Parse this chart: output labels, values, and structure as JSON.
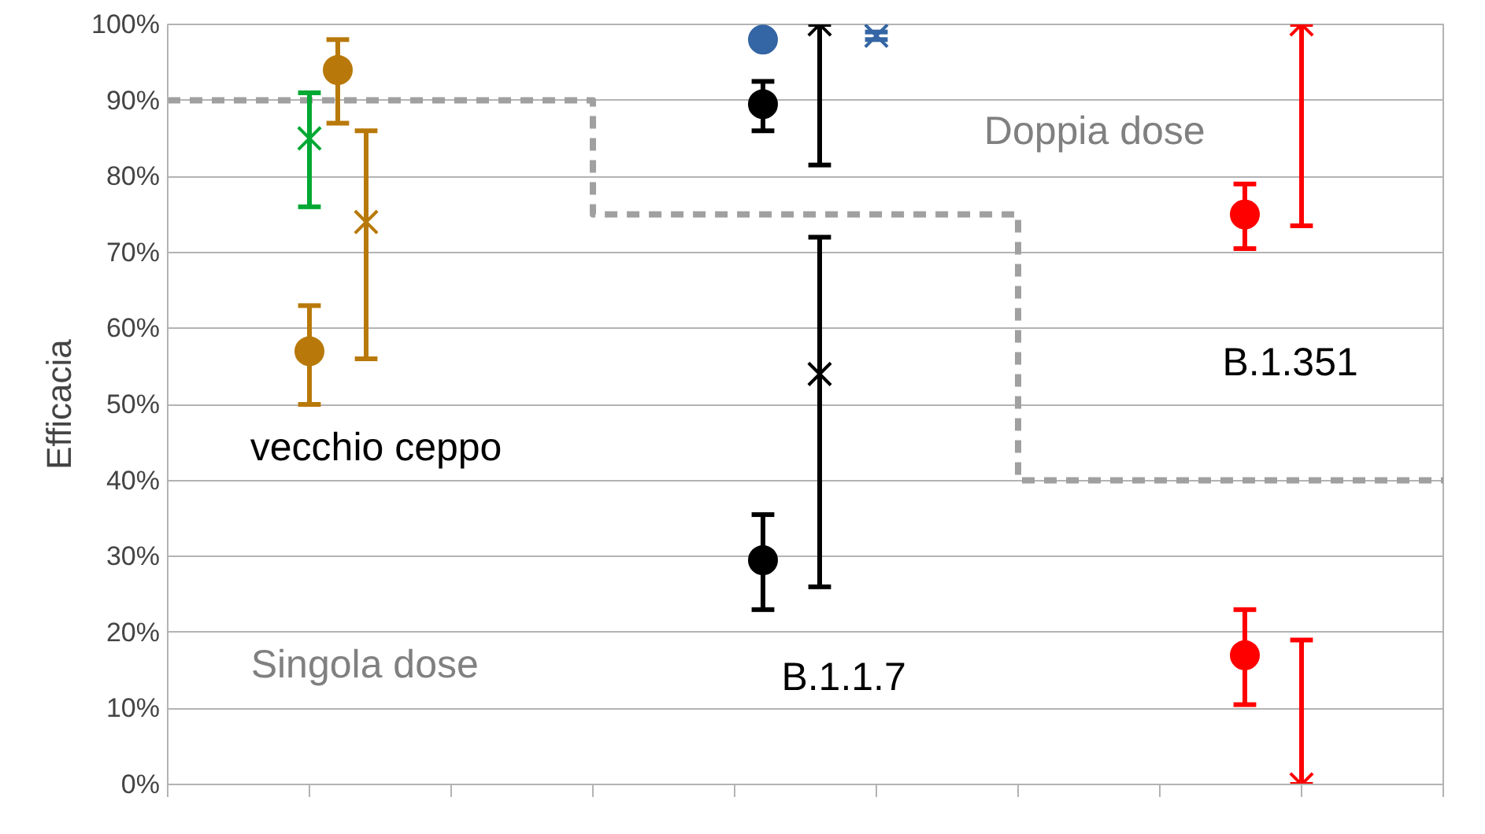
{
  "chart_data": {
    "type": "scatter",
    "ylabel": "Efficacia",
    "categories": [
      null,
      null,
      null,
      null,
      null,
      null,
      null,
      null,
      null,
      null,
      null,
      null,
      null,
      null,
      null,
      null,
      null,
      null,
      null,
      null,
      null,
      null,
      null,
      null,
      null,
      null,
      null,
      null,
      null,
      null,
      null,
      null,
      null,
      null,
      null,
      null,
      null,
      null,
      null,
      null,
      null,
      null,
      null,
      null,
      null,
      null
    ],
    "ylim": [
      0,
      100
    ],
    "yticks": [
      {
        "value": 0,
        "label": "0%"
      },
      {
        "value": 10,
        "label": "10%"
      },
      {
        "value": 20,
        "label": "20%"
      },
      {
        "value": 30,
        "label": "30%"
      },
      {
        "value": 40,
        "label": "40%"
      },
      {
        "value": 50,
        "label": "50%"
      },
      {
        "value": 60,
        "label": "60%"
      },
      {
        "value": 70,
        "label": "70%"
      },
      {
        "value": 80,
        "label": "80%"
      },
      {
        "value": 90,
        "label": "90%"
      },
      {
        "value": 100,
        "label": "100%"
      }
    ],
    "tick_labels": "y",
    "grid": "y",
    "series": [
      {
        "type": "step",
        "color": "#a0a0a0",
        "line_style": "dashed",
        "values": [
          90,
          90,
          90,
          90,
          90,
          90,
          90,
          90,
          90,
          90,
          90,
          90,
          90,
          90,
          90,
          75,
          75,
          75,
          75,
          75,
          75,
          75,
          75,
          75,
          75,
          75,
          75,
          75,
          75,
          75,
          40,
          40,
          40,
          40,
          40,
          40,
          40,
          40,
          40,
          40,
          40,
          40,
          40,
          40,
          40,
          40
        ]
      },
      {
        "color": "#b8790a",
        "marker": "circle",
        "values": [
          null,
          null,
          null,
          null,
          null,
          57,
          94,
          null,
          null,
          null,
          null,
          null,
          null,
          null,
          null,
          null,
          null,
          null,
          null,
          null,
          null,
          null,
          null,
          null,
          null,
          null,
          null,
          null,
          null,
          null,
          null,
          null,
          null,
          null,
          null,
          null,
          null,
          null,
          null,
          null,
          null,
          null,
          null,
          null,
          null,
          null
        ],
        "errors": [
          null,
          null,
          null,
          null,
          null,
          [
            50,
            63
          ],
          [
            87,
            98
          ],
          null,
          null,
          null,
          null,
          null,
          null,
          null,
          null,
          null,
          null,
          null,
          null,
          null,
          null,
          null,
          null,
          null,
          null,
          null,
          null,
          null,
          null,
          null,
          null,
          null,
          null,
          null,
          null,
          null,
          null,
          null,
          null,
          null,
          null,
          null,
          null,
          null,
          null,
          null
        ]
      },
      {
        "color": "#00a933",
        "marker": "cross",
        "values": [
          null,
          null,
          null,
          null,
          null,
          85,
          null,
          null,
          null,
          null,
          null,
          null,
          null,
          null,
          null,
          null,
          null,
          null,
          null,
          null,
          null,
          null,
          null,
          null,
          null,
          null,
          null,
          null,
          null,
          null,
          null,
          null,
          null,
          null,
          null,
          null,
          null,
          null,
          null,
          null,
          null,
          null,
          null,
          null,
          null,
          null
        ],
        "errors": [
          null,
          null,
          null,
          null,
          null,
          [
            76,
            91
          ],
          null,
          null,
          null,
          null,
          null,
          null,
          null,
          null,
          null,
          null,
          null,
          null,
          null,
          null,
          null,
          null,
          null,
          null,
          null,
          null,
          null,
          null,
          null,
          null,
          null,
          null,
          null,
          null,
          null,
          null,
          null,
          null,
          null,
          null,
          null,
          null,
          null,
          null,
          null,
          null
        ]
      },
      {
        "color": "#b8790a",
        "marker": "cross",
        "values": [
          null,
          null,
          null,
          null,
          null,
          null,
          null,
          74,
          null,
          null,
          null,
          null,
          null,
          null,
          null,
          null,
          null,
          null,
          null,
          null,
          null,
          null,
          null,
          null,
          null,
          null,
          null,
          null,
          null,
          null,
          null,
          null,
          null,
          null,
          null,
          null,
          null,
          null,
          null,
          null,
          null,
          null,
          null,
          null,
          null,
          null
        ],
        "errors": [
          null,
          null,
          null,
          null,
          null,
          null,
          null,
          [
            56,
            86
          ],
          null,
          null,
          null,
          null,
          null,
          null,
          null,
          null,
          null,
          null,
          null,
          null,
          null,
          null,
          null,
          null,
          null,
          null,
          null,
          null,
          null,
          null,
          null,
          null,
          null,
          null,
          null,
          null,
          null,
          null,
          null,
          null,
          null,
          null,
          null,
          null,
          null,
          null
        ]
      },
      {
        "color": "#3465a4",
        "marker": "circle",
        "values": [
          null,
          null,
          null,
          null,
          null,
          null,
          null,
          null,
          null,
          null,
          null,
          null,
          null,
          null,
          null,
          null,
          null,
          null,
          null,
          null,
          null,
          98,
          null,
          null,
          null,
          null,
          null,
          null,
          null,
          null,
          null,
          null,
          null,
          null,
          null,
          null,
          null,
          null,
          null,
          null,
          null,
          null,
          null,
          null,
          null,
          null
        ]
      },
      {
        "color": "#3465a4",
        "marker": "cross",
        "values": [
          null,
          null,
          null,
          null,
          null,
          null,
          null,
          null,
          null,
          null,
          null,
          null,
          null,
          null,
          null,
          null,
          null,
          null,
          null,
          null,
          null,
          null,
          null,
          null,
          null,
          98.5,
          null,
          null,
          null,
          null,
          null,
          null,
          null,
          null,
          null,
          null,
          null,
          null,
          null,
          null,
          null,
          null,
          null,
          null,
          null,
          null
        ],
        "errors": [
          null,
          null,
          null,
          null,
          null,
          null,
          null,
          null,
          null,
          null,
          null,
          null,
          null,
          null,
          null,
          null,
          null,
          null,
          null,
          null,
          null,
          null,
          null,
          null,
          null,
          [
            98,
            99
          ],
          null,
          null,
          null,
          null,
          null,
          null,
          null,
          null,
          null,
          null,
          null,
          null,
          null,
          null,
          null,
          null,
          null,
          null,
          null,
          null
        ]
      },
      {
        "color": "#000000",
        "marker": "circle",
        "values": [
          null,
          null,
          null,
          null,
          null,
          null,
          null,
          null,
          null,
          null,
          null,
          null,
          null,
          null,
          null,
          null,
          null,
          null,
          null,
          null,
          null,
          89.5,
          null,
          null,
          null,
          null,
          null,
          null,
          null,
          null,
          null,
          null,
          null,
          null,
          null,
          null,
          null,
          null,
          null,
          null,
          null,
          null,
          null,
          null,
          null,
          null
        ],
        "errors": [
          null,
          null,
          null,
          null,
          null,
          null,
          null,
          null,
          null,
          null,
          null,
          null,
          null,
          null,
          null,
          null,
          null,
          null,
          null,
          null,
          null,
          [
            86,
            92.5
          ],
          null,
          null,
          null,
          null,
          null,
          null,
          null,
          null,
          null,
          null,
          null,
          null,
          null,
          null,
          null,
          null,
          null,
          null,
          null,
          null,
          null,
          null,
          null,
          null
        ]
      },
      {
        "color": "#000000",
        "marker": "circle",
        "values": [
          null,
          null,
          null,
          null,
          null,
          null,
          null,
          null,
          null,
          null,
          null,
          null,
          null,
          null,
          null,
          null,
          null,
          null,
          null,
          null,
          null,
          29.5,
          null,
          null,
          null,
          null,
          null,
          null,
          null,
          null,
          null,
          null,
          null,
          null,
          null,
          null,
          null,
          null,
          null,
          null,
          null,
          null,
          null,
          null,
          null,
          null
        ],
        "errors": [
          null,
          null,
          null,
          null,
          null,
          null,
          null,
          null,
          null,
          null,
          null,
          null,
          null,
          null,
          null,
          null,
          null,
          null,
          null,
          null,
          null,
          [
            23,
            35.5
          ],
          null,
          null,
          null,
          null,
          null,
          null,
          null,
          null,
          null,
          null,
          null,
          null,
          null,
          null,
          null,
          null,
          null,
          null,
          null,
          null,
          null,
          null,
          null,
          null
        ]
      },
      {
        "color": "#000000",
        "marker": "cross",
        "values": [
          null,
          null,
          null,
          null,
          null,
          null,
          null,
          null,
          null,
          null,
          null,
          null,
          null,
          null,
          null,
          null,
          null,
          null,
          null,
          null,
          null,
          null,
          null,
          100,
          null,
          null,
          null,
          null,
          null,
          null,
          null,
          null,
          null,
          null,
          null,
          null,
          null,
          null,
          null,
          null,
          null,
          null,
          null,
          null,
          null,
          null
        ],
        "errors": [
          null,
          null,
          null,
          null,
          null,
          null,
          null,
          null,
          null,
          null,
          null,
          null,
          null,
          null,
          null,
          null,
          null,
          null,
          null,
          null,
          null,
          null,
          null,
          [
            81.5,
            100
          ],
          null,
          null,
          null,
          null,
          null,
          null,
          null,
          null,
          null,
          null,
          null,
          null,
          null,
          null,
          null,
          null,
          null,
          null,
          null,
          null,
          null,
          null
        ]
      },
      {
        "color": "#000000",
        "marker": "cross",
        "values": [
          null,
          null,
          null,
          null,
          null,
          null,
          null,
          null,
          null,
          null,
          null,
          null,
          null,
          null,
          null,
          null,
          null,
          null,
          null,
          null,
          null,
          null,
          null,
          54,
          null,
          null,
          null,
          null,
          null,
          null,
          null,
          null,
          null,
          null,
          null,
          null,
          null,
          null,
          null,
          null,
          null,
          null,
          null,
          null,
          null,
          null
        ],
        "errors": [
          null,
          null,
          null,
          null,
          null,
          null,
          null,
          null,
          null,
          null,
          null,
          null,
          null,
          null,
          null,
          null,
          null,
          null,
          null,
          null,
          null,
          null,
          null,
          [
            26,
            72
          ],
          null,
          null,
          null,
          null,
          null,
          null,
          null,
          null,
          null,
          null,
          null,
          null,
          null,
          null,
          null,
          null,
          null,
          null,
          null,
          null,
          null,
          null
        ]
      },
      {
        "color": "#ff0000",
        "marker": "circle",
        "values": [
          null,
          null,
          null,
          null,
          null,
          null,
          null,
          null,
          null,
          null,
          null,
          null,
          null,
          null,
          null,
          null,
          null,
          null,
          null,
          null,
          null,
          null,
          null,
          null,
          null,
          null,
          null,
          null,
          null,
          null,
          null,
          null,
          null,
          null,
          null,
          null,
          null,
          null,
          75,
          null,
          null,
          null,
          null,
          null,
          null,
          null
        ],
        "errors": [
          null,
          null,
          null,
          null,
          null,
          null,
          null,
          null,
          null,
          null,
          null,
          null,
          null,
          null,
          null,
          null,
          null,
          null,
          null,
          null,
          null,
          null,
          null,
          null,
          null,
          null,
          null,
          null,
          null,
          null,
          null,
          null,
          null,
          null,
          null,
          null,
          null,
          null,
          [
            70.5,
            79
          ],
          null,
          null,
          null,
          null,
          null,
          null,
          null
        ]
      },
      {
        "color": "#ff0000",
        "marker": "circle",
        "values": [
          null,
          null,
          null,
          null,
          null,
          null,
          null,
          null,
          null,
          null,
          null,
          null,
          null,
          null,
          null,
          null,
          null,
          null,
          null,
          null,
          null,
          null,
          null,
          null,
          null,
          null,
          null,
          null,
          null,
          null,
          null,
          null,
          null,
          null,
          null,
          null,
          null,
          null,
          17,
          null,
          null,
          null,
          null,
          null,
          null,
          null
        ],
        "errors": [
          null,
          null,
          null,
          null,
          null,
          null,
          null,
          null,
          null,
          null,
          null,
          null,
          null,
          null,
          null,
          null,
          null,
          null,
          null,
          null,
          null,
          null,
          null,
          null,
          null,
          null,
          null,
          null,
          null,
          null,
          null,
          null,
          null,
          null,
          null,
          null,
          null,
          null,
          [
            10.5,
            23
          ],
          null,
          null,
          null,
          null,
          null,
          null,
          null
        ]
      },
      {
        "color": "#ff0000",
        "marker": "cross",
        "values": [
          null,
          null,
          null,
          null,
          null,
          null,
          null,
          null,
          null,
          null,
          null,
          null,
          null,
          null,
          null,
          null,
          null,
          null,
          null,
          null,
          null,
          null,
          null,
          null,
          null,
          null,
          null,
          null,
          null,
          null,
          null,
          null,
          null,
          null,
          null,
          null,
          null,
          null,
          null,
          null,
          100,
          null,
          null,
          null,
          null,
          null
        ],
        "errors": [
          null,
          null,
          null,
          null,
          null,
          null,
          null,
          null,
          null,
          null,
          null,
          null,
          null,
          null,
          null,
          null,
          null,
          null,
          null,
          null,
          null,
          null,
          null,
          null,
          null,
          null,
          null,
          null,
          null,
          null,
          null,
          null,
          null,
          null,
          null,
          null,
          null,
          null,
          null,
          null,
          [
            73.5,
            100
          ],
          null,
          null,
          null,
          null,
          null
        ]
      },
      {
        "color": "#ff0000",
        "marker": "cross",
        "values": [
          null,
          null,
          null,
          null,
          null,
          null,
          null,
          null,
          null,
          null,
          null,
          null,
          null,
          null,
          null,
          null,
          null,
          null,
          null,
          null,
          null,
          null,
          null,
          null,
          null,
          null,
          null,
          null,
          null,
          null,
          null,
          null,
          null,
          null,
          null,
          null,
          null,
          null,
          null,
          null,
          0,
          null,
          null,
          null,
          null,
          null
        ],
        "errors": [
          null,
          null,
          null,
          null,
          null,
          null,
          null,
          null,
          null,
          null,
          null,
          null,
          null,
          null,
          null,
          null,
          null,
          null,
          null,
          null,
          null,
          null,
          null,
          null,
          null,
          null,
          null,
          null,
          null,
          null,
          null,
          null,
          null,
          null,
          null,
          null,
          null,
          null,
          null,
          null,
          [
            0,
            19
          ],
          null,
          null,
          null,
          null,
          null
        ]
      }
    ],
    "annotations": [
      "vecchio ceppo",
      "Singola dose",
      "Doppia dose",
      "B.1.1.7",
      "B.1.351"
    ]
  }
}
